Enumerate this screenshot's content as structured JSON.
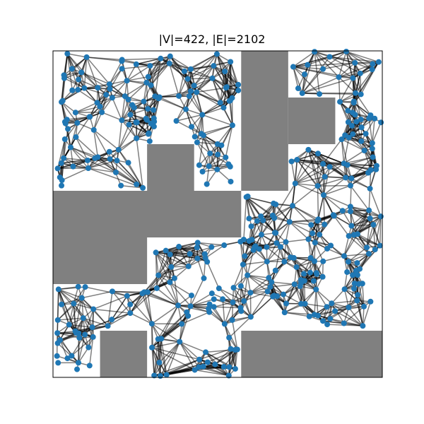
{
  "title": "|V|=422, |E|=2102",
  "graph": {
    "vertex_count": 422,
    "edge_count": 2102,
    "domain": {
      "x": [
        0,
        7
      ],
      "y": [
        0,
        7
      ]
    },
    "colors": {
      "obstacle": "#808080",
      "node": "#1f77b4",
      "edge": "#000000",
      "frame": "#000000"
    },
    "obstacles": [
      {
        "name": "obstacle-top-middle",
        "x": 4.0,
        "y": 4.0,
        "w": 1.0,
        "h": 2.0
      },
      {
        "name": "obstacle-top-middle-notch",
        "x": 4.0,
        "y": 6.0,
        "w": 1.0,
        "h": 1.0
      },
      {
        "name": "obstacle-top-right-arm",
        "x": 5.0,
        "y": 5.0,
        "w": 1.0,
        "h": 1.0
      },
      {
        "name": "obstacle-left-block",
        "x": 0.0,
        "y": 2.0,
        "w": 2.0,
        "h": 2.0
      },
      {
        "name": "obstacle-left-upper",
        "x": 0.0,
        "y": 3.0,
        "w": 4.0,
        "h": 1.0
      },
      {
        "name": "obstacle-center-post",
        "x": 2.0,
        "y": 4.0,
        "w": 1.0,
        "h": 1.0
      },
      {
        "name": "obstacle-bottom-left",
        "x": 1.0,
        "y": 0.0,
        "w": 1.0,
        "h": 1.0
      },
      {
        "name": "obstacle-bottom-right",
        "x": 4.0,
        "y": 0.0,
        "w": 3.0,
        "h": 1.0
      }
    ]
  }
}
